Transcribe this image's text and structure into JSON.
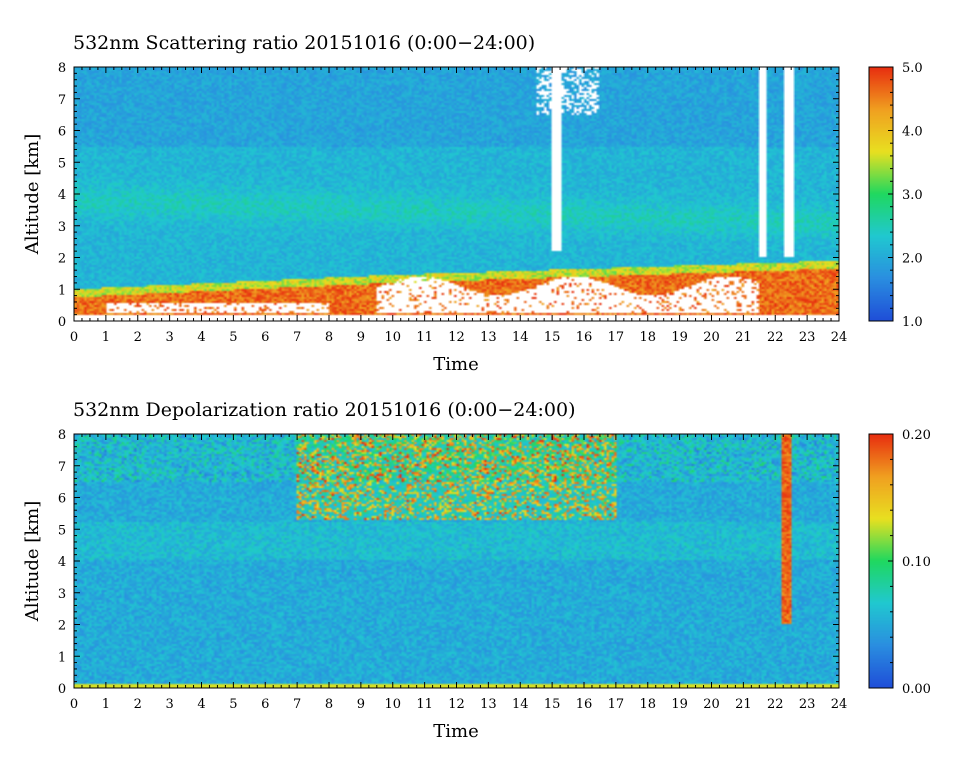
{
  "chart_data": [
    {
      "type": "heatmap",
      "title": "532nm Scattering ratio  20151016 (0:00−24:00)",
      "xlabel": "Time",
      "ylabel": "Altitude [km]",
      "xlim": [
        0,
        24
      ],
      "ylim": [
        0,
        8
      ],
      "xticks": [
        "0",
        "1",
        "2",
        "3",
        "4",
        "5",
        "6",
        "7",
        "8",
        "9",
        "10",
        "11",
        "12",
        "13",
        "14",
        "15",
        "16",
        "17",
        "18",
        "19",
        "20",
        "21",
        "22",
        "23",
        "24"
      ],
      "yticks": [
        "0",
        "1",
        "2",
        "3",
        "4",
        "5",
        "6",
        "7",
        "8"
      ],
      "colorbar": {
        "min": 1.0,
        "max": 5.0,
        "ticks": [
          "1.0",
          "2.0",
          "3.0",
          "4.0",
          "5.0"
        ]
      },
      "colors": [
        "#1f4fd8",
        "#2a8fe0",
        "#20c8d0",
        "#1fd860",
        "#e8e020",
        "#f0a020",
        "#e83010"
      ],
      "features": [
        {
          "name": "aerosol boundary layer",
          "t": [
            0,
            24
          ],
          "alt_top": [
            1.0,
            1.9
          ],
          "value": 4.5
        },
        {
          "name": "cloud / saturated",
          "t": [
            9.5,
            21.5
          ],
          "alt": [
            0.2,
            1.4
          ],
          "value": "saturated"
        },
        {
          "name": "cirrus gap",
          "t": [
            15.0,
            15.3
          ],
          "alt": [
            2.2,
            8
          ]
        },
        {
          "name": "cirrus gap",
          "t": [
            21.5,
            21.7
          ],
          "alt": [
            2.0,
            8
          ]
        },
        {
          "name": "cirrus gap",
          "t": [
            22.3,
            22.6
          ],
          "alt": [
            2.0,
            8
          ]
        },
        {
          "name": "elevated aerosol layer",
          "t": [
            0,
            24
          ],
          "alt": [
            3.2,
            4.5
          ],
          "value": 2.0
        }
      ]
    },
    {
      "type": "heatmap",
      "title": "532nm Depolarization ratio  20151016 (0:00−24:00)",
      "xlabel": "Time",
      "ylabel": "Altitude [km]",
      "xlim": [
        0,
        24
      ],
      "ylim": [
        0,
        8
      ],
      "xticks": [
        "0",
        "1",
        "2",
        "3",
        "4",
        "5",
        "6",
        "7",
        "8",
        "9",
        "10",
        "11",
        "12",
        "13",
        "14",
        "15",
        "16",
        "17",
        "18",
        "19",
        "20",
        "21",
        "22",
        "23",
        "24"
      ],
      "yticks": [
        "0",
        "1",
        "2",
        "3",
        "4",
        "5",
        "6",
        "7",
        "8"
      ],
      "colorbar": {
        "min": 0.0,
        "max": 0.2,
        "ticks": [
          "0.00",
          "0.10",
          "0.20"
        ]
      },
      "colors": [
        "#1f4fd8",
        "#2a8fe0",
        "#20c8d0",
        "#1fd860",
        "#e8e020",
        "#f0a020",
        "#e83010"
      ],
      "features": [
        {
          "name": "noisy high depolarization",
          "t": [
            7,
            17
          ],
          "alt": [
            5.5,
            8
          ],
          "value": 0.15
        },
        {
          "name": "ice cloud column",
          "t": [
            22.2,
            22.5
          ],
          "alt": [
            2.0,
            8
          ],
          "value": 0.2
        },
        {
          "name": "surface line",
          "t": [
            0,
            24
          ],
          "alt": [
            0.0,
            0.15
          ],
          "value": 0.13
        }
      ]
    }
  ]
}
